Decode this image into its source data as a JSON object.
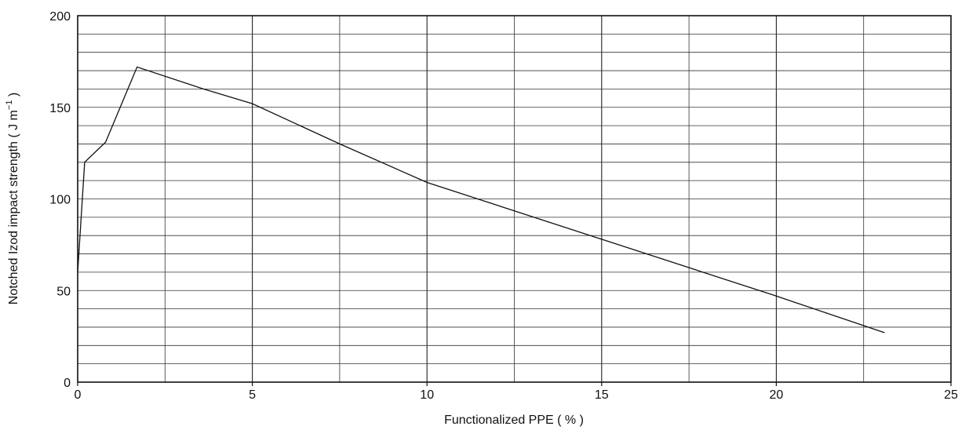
{
  "chart_data": {
    "type": "line",
    "xlabel": "Functionalized PPE ( % )",
    "ylabel": "Notched Izod impact strength ( J m",
    "ylabel_superscript": "−1",
    "ylabel_suffix": " )",
    "xlim": [
      0,
      25
    ],
    "ylim": [
      0,
      200
    ],
    "x_ticks": [
      0,
      5,
      10,
      15,
      20,
      25
    ],
    "y_ticks": [
      0,
      50,
      100,
      150,
      200
    ],
    "x_tick_labels": [
      "0",
      "5",
      "10",
      "15",
      "20",
      "25"
    ],
    "y_tick_labels": [
      "0",
      "50",
      "100",
      "150",
      "200"
    ],
    "x_grid_step": 2.5,
    "y_grid_step": 10,
    "grid": true,
    "line_color": "#111111",
    "series": [
      {
        "x": [
          0,
          0.2,
          0.8,
          1.7,
          3.6,
          5.0,
          7.5,
          10.0,
          15.0,
          20.0,
          23.1
        ],
        "y": [
          60,
          120,
          131,
          172,
          160,
          152,
          130,
          109,
          78,
          47,
          27
        ]
      }
    ]
  }
}
